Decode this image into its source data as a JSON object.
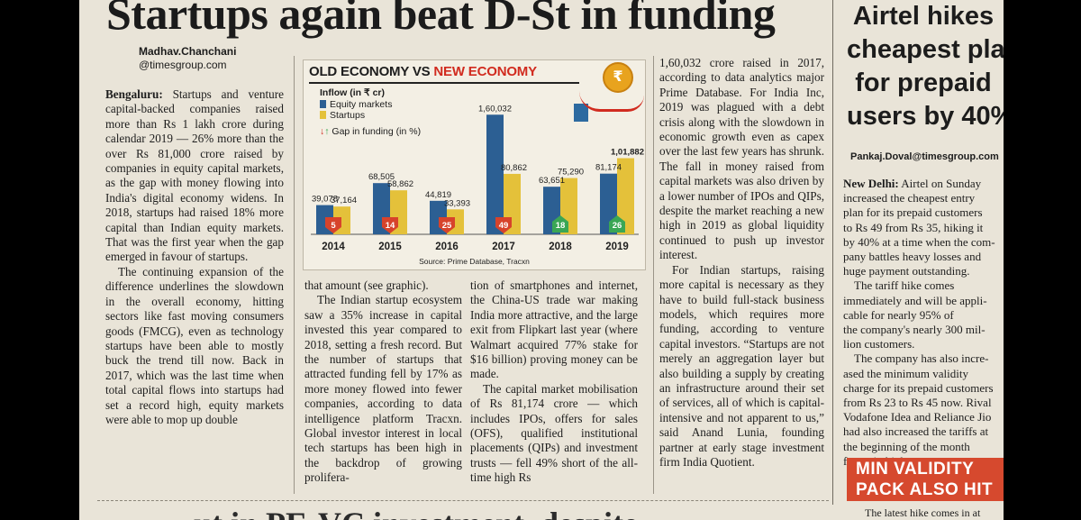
{
  "headline": "Startups again beat D-St in funding",
  "byline": {
    "name": "Madhav.Chanchani",
    "handle": "@timesgroup.com"
  },
  "col1": {
    "dateline": "Bengaluru:",
    "p1": " Startups and venture capital-backed companies raised more than Rs 1 lakh crore during calendar 2019 — 26% more than the over Rs 81,000 crore raised by companies in equity capital markets, as the gap with money flowing into India's digital economy widens. In 2018, startups had raised 18% more capital than Indian equity markets. That was the first year when the gap emerged in favour of startups.",
    "p2": "The continuing expansion of the difference underlines the slowdown in the overall economy, hitting sectors like fast moving consumers goods (FMCG), even as technology startups have been able to mostly buck the trend till now. Back in 2017, which was the last time when total capital flows into startups had set a record high, equity markets were able to mop up double"
  },
  "col2": {
    "p1": "that amount (see graphic).",
    "p2": "The Indian startup ecosystem saw a 35% increase in capital invested this year compared to 2018, setting a fresh record. But the number of startups that attracted funding fell by 17% as more money flowed into fewer companies, according to data intelligence platform Tracxn. Global investor interest in local tech startups has been high in the backdrop of growing prolifera-"
  },
  "col3": {
    "p1": "tion of smartphones and internet, the China-US trade war making India more attractive, and the large exit from Flipkart last year (where Walmart acquired 77% stake for $16 billion) proving money can be made.",
    "p2": "The capital market mobilisation of Rs 81,174 crore — which includes IPOs, offers for sales (OFS), qualified institutional placements (QIPs) and investment trusts — fell 49% short of the all-time high Rs"
  },
  "col4": {
    "p1": "1,60,032 crore raised in 2017, according to data analytics major Prime Database. For India Inc, 2019 was plagued with a debt crisis along with the slowdown in economic growth even as capex over the last few years has shrunk. The fall in money raised from capital markets was also driven by a lower number of IPOs and QIPs, despite the market reaching a new high in 2019 as global liquidity continued to push up investor interest.",
    "p2": "For Indian startups, raising more capital is necessary as they have to build full-stack business models, which requires more funding, according to venture capital investors. “Startups are not merely an aggregation layer but also building a supply by creating an infrastructure around their set of services, all of which is capital-intensive and not apparent to us,” said Anand Lunia, founding partner at early stage investment firm India Quotient."
  },
  "graphic": {
    "title_old": "OLD ECONOMY VS ",
    "title_new": "NEW ECONOMY",
    "coin_symbol": "₹",
    "source": "Source: Prime Database, Tracxn"
  },
  "chart_data": {
    "type": "bar",
    "title": "OLD ECONOMY VS NEW ECONOMY",
    "ylabel": "Inflow (in ₹ cr)",
    "categories": [
      "2014",
      "2015",
      "2016",
      "2017",
      "2018",
      "2019"
    ],
    "series": [
      {
        "name": "Equity markets",
        "color": "#2c5f93",
        "values": [
          39078,
          68505,
          44819,
          160032,
          63651,
          81174
        ],
        "labels": [
          "39,078",
          "68,505",
          "44,819",
          "1,60,032",
          "63,651",
          "81,174"
        ]
      },
      {
        "name": "Startups",
        "color": "#e4c13a",
        "values": [
          37164,
          58862,
          33393,
          80862,
          75290,
          101882
        ],
        "labels": [
          "37,164",
          "58,862",
          "33,393",
          "80,862",
          "75,290",
          "1,01,882"
        ]
      }
    ],
    "gap_label": "Gap in funding (in %)",
    "gap": [
      5,
      14,
      25,
      49,
      18,
      26
    ],
    "gap_direction": [
      "down",
      "down",
      "down",
      "down",
      "up",
      "up"
    ],
    "gap_colors": {
      "down": "#d7432b",
      "up": "#3aa655"
    },
    "ylim": [
      0,
      170000
    ],
    "grid": false,
    "legend_position": "top-left"
  },
  "right_story": {
    "headline": [
      "Airtel hikes",
      "cheapest plan",
      "for prepaid",
      "users by 40%"
    ],
    "byline": "Pankaj.Doval@timesgroup.com",
    "lines": [
      "New Delhi: Airtel on Sunday",
      "increased the cheapest entry",
      "plan for its prepaid customers",
      "to Rs 49 from Rs 35, hiking it",
      "by 40% at a time when the com-",
      "pany battles heavy losses and",
      "huge payment outstanding.",
      "The tariff hike comes",
      "immediately and will be appli-",
      "cable for nearly 95% of",
      "the company's nearly 300 mil-",
      "lion customers.",
      "The company has also incre-",
      "ased the minimum validity",
      "charge for its prepaid customers",
      "from Rs 23 to Rs 45 now. Rival",
      "Vodafone Idea and Reliance Jio",
      "had also increased the tariffs at",
      "the beginning of the month",
      "factor in higher costs."
    ],
    "box_lines": [
      "MIN VALIDITY",
      "PACK ALSO HIT"
    ],
    "foot": "The latest hike comes in at"
  },
  "next_headline": "...ut in PE-VC investment, despite"
}
